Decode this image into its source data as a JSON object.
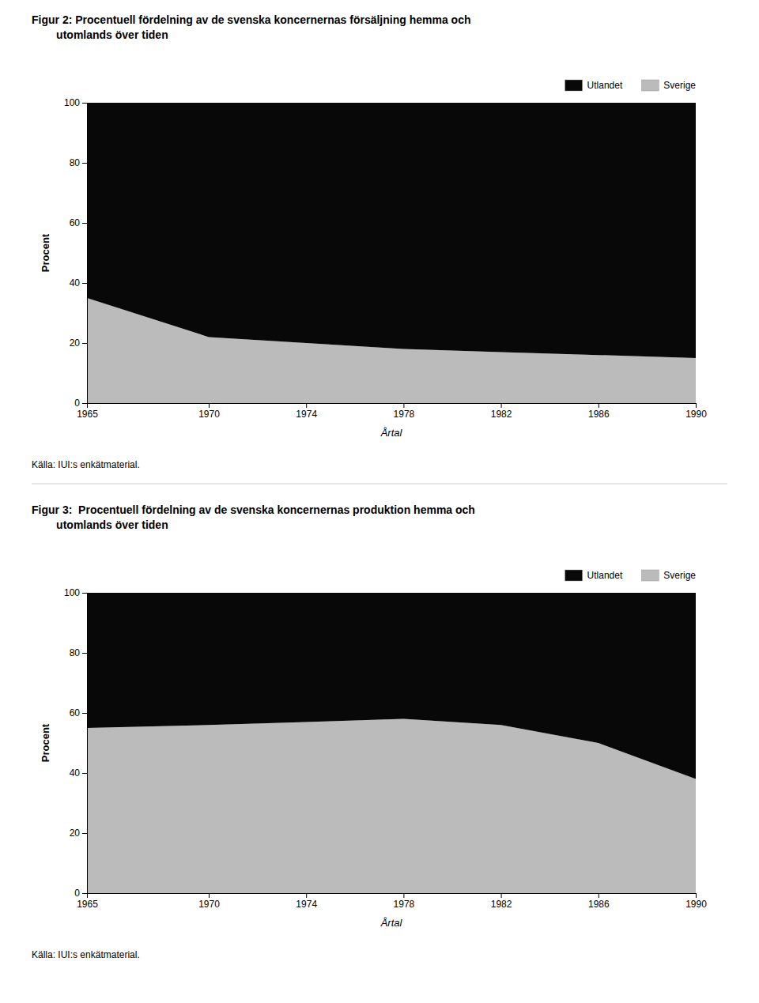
{
  "chart_data": [
    {
      "type": "area",
      "title": [
        "Figur 2: Procentuell fördelning av de svenska koncernernas försäljning hemma och",
        "        utomlands över tiden"
      ],
      "x": [
        1965,
        1970,
        1974,
        1978,
        1982,
        1986,
        1990
      ],
      "series": [
        {
          "name": "Sverige",
          "color": "#bbbbbb",
          "values": [
            35,
            22,
            20,
            18,
            17,
            16,
            15
          ]
        },
        {
          "name": "Utlandet",
          "color": "#080808",
          "values": [
            65,
            78,
            80,
            82,
            83,
            84,
            85
          ]
        }
      ],
      "x_label": "Årtal",
      "y_label": "Procent",
      "annotations": [
        "Källa: IUI:s enkätmaterial."
      ],
      "xlim": [
        1965,
        1990
      ],
      "xticks": [
        1965,
        1970,
        1974,
        1978,
        1982,
        1986,
        1990
      ],
      "ylim": [
        0,
        100
      ],
      "yticks": [
        0,
        20,
        40,
        60,
        80,
        100
      ],
      "stacked": true,
      "legend": "top-right",
      "grid": false
    },
    {
      "type": "area",
      "title": [
        "Figur 3:  Procentuell fördelning av de svenska koncernernas produktion hemma och",
        "        utomlands över tiden"
      ],
      "x": [
        1965,
        1970,
        1974,
        1978,
        1982,
        1986,
        1990
      ],
      "series": [
        {
          "name": "Sverige",
          "color": "#bbbbbb",
          "values": [
            55,
            56,
            57,
            58,
            56,
            50,
            38
          ]
        },
        {
          "name": "Utlandet",
          "color": "#080808",
          "values": [
            45,
            44,
            43,
            42,
            44,
            50,
            62
          ]
        }
      ],
      "x_label": "Årtal",
      "y_label": "Procent",
      "annotations": [
        "Källa: IUI:s enkätmaterial."
      ],
      "xlim": [
        1965,
        1990
      ],
      "xticks": [
        1965,
        1970,
        1974,
        1978,
        1982,
        1986,
        1990
      ],
      "ylim": [
        0,
        100
      ],
      "yticks": [
        0,
        20,
        40,
        60,
        80,
        100
      ],
      "stacked": true,
      "legend": "top-right",
      "grid": false
    }
  ]
}
